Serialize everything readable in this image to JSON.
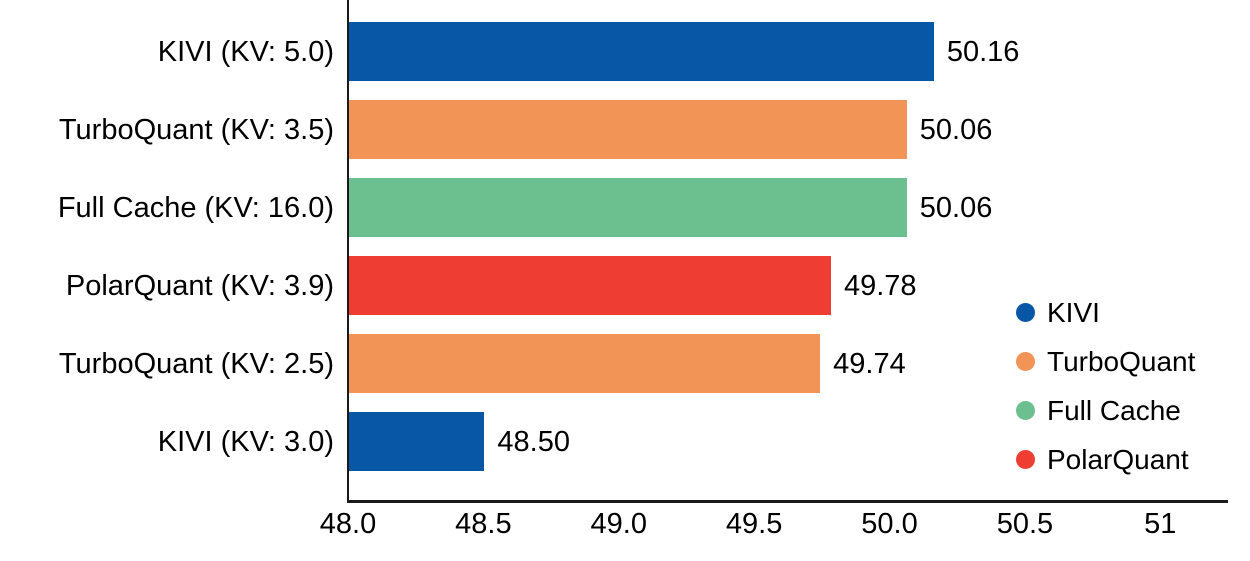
{
  "chart_data": {
    "type": "bar",
    "orientation": "horizontal",
    "title": "",
    "xlabel": "",
    "ylabel": "",
    "grid": false,
    "xlim": [
      48.0,
      51.25
    ],
    "x_ticks": [
      {
        "label": "48.0",
        "value": 48.0
      },
      {
        "label": "48.5",
        "value": 48.5
      },
      {
        "label": "49.0",
        "value": 49.0
      },
      {
        "label": "49.5",
        "value": 49.5
      },
      {
        "label": "50.0",
        "value": 50.0
      },
      {
        "label": "50.5",
        "value": 50.5
      },
      {
        "label": "51",
        "value": 51.0
      }
    ],
    "bars": [
      {
        "category": "KIVI (KV: 5.0)",
        "series": "KIVI",
        "value": 50.16,
        "value_label": "50.16"
      },
      {
        "category": "TurboQuant (KV: 3.5)",
        "series": "TurboQuant",
        "value": 50.06,
        "value_label": "50.06"
      },
      {
        "category": "Full Cache (KV: 16.0)",
        "series": "Full Cache",
        "value": 50.06,
        "value_label": "50.06"
      },
      {
        "category": "PolarQuant (KV: 3.9)",
        "series": "PolarQuant",
        "value": 49.78,
        "value_label": "49.78"
      },
      {
        "category": "TurboQuant (KV: 2.5)",
        "series": "TurboQuant",
        "value": 49.74,
        "value_label": "49.74"
      },
      {
        "category": "KIVI (KV: 3.0)",
        "series": "KIVI",
        "value": 48.5,
        "value_label": "48.50"
      }
    ],
    "legend": {
      "position": "right-lower",
      "items": [
        {
          "label": "KIVI",
          "color": "#0857A6"
        },
        {
          "label": "TurboQuant",
          "color": "#F19456"
        },
        {
          "label": "Full Cache",
          "color": "#6CC08F"
        },
        {
          "label": "PolarQuant",
          "color": "#EE3E33"
        }
      ]
    },
    "colors": {
      "KIVI": "#0857A6",
      "TurboQuant": "#F19456",
      "Full Cache": "#6CC08F",
      "PolarQuant": "#EE3E33",
      "axis": "#1a1a1a",
      "text": "#000000"
    }
  }
}
